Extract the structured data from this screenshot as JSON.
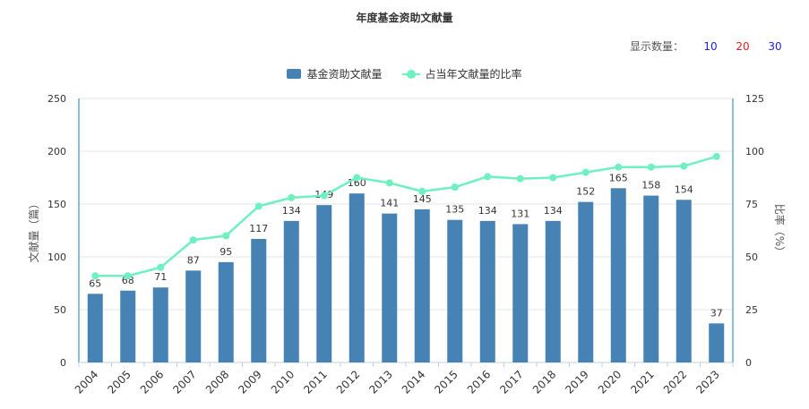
{
  "header": {
    "title": "年度基金资助文献量",
    "count_label": "显示数量：",
    "count_options": [
      {
        "label": "10",
        "color": "#2020e0"
      },
      {
        "label": "20",
        "color": "#e02020"
      },
      {
        "label": "30",
        "color": "#2020e0"
      }
    ]
  },
  "legend": {
    "bar_label": "基金资助文献量",
    "line_label": "占当年文献量的比率"
  },
  "colors": {
    "bar": "#4682b4",
    "line": "#6ef0c0",
    "axis": "#1a7fb0",
    "grid": "#e6e6e6"
  },
  "chart_data": {
    "type": "bar",
    "title": "年度基金资助文献量",
    "categories": [
      "2004",
      "2005",
      "2006",
      "2007",
      "2008",
      "2009",
      "2010",
      "2011",
      "2012",
      "2013",
      "2014",
      "2015",
      "2016",
      "2017",
      "2018",
      "2019",
      "2020",
      "2021",
      "2022",
      "2023"
    ],
    "series": [
      {
        "name": "基金资助文献量",
        "type": "bar",
        "axis": "left",
        "values": [
          65,
          68,
          71,
          87,
          95,
          117,
          134,
          149,
          160,
          141,
          145,
          135,
          134,
          131,
          134,
          152,
          165,
          158,
          154,
          37
        ]
      },
      {
        "name": "占当年文献量的比率",
        "type": "line",
        "axis": "right",
        "values": [
          41,
          41,
          45,
          58,
          60,
          74,
          78,
          79,
          87.5,
          85,
          81,
          83,
          88,
          87,
          87.5,
          90,
          92.5,
          92.5,
          93,
          97.5
        ]
      }
    ],
    "ylabel": "文献量（篇）",
    "y2label": "比率（%）",
    "ylim": [
      0,
      250
    ],
    "y2lim": [
      0,
      125
    ],
    "yticks": [
      0,
      50,
      100,
      150,
      200,
      250
    ],
    "y2ticks": [
      0,
      25,
      50,
      75,
      100,
      125
    ],
    "grid": true,
    "legend_position": "top"
  }
}
